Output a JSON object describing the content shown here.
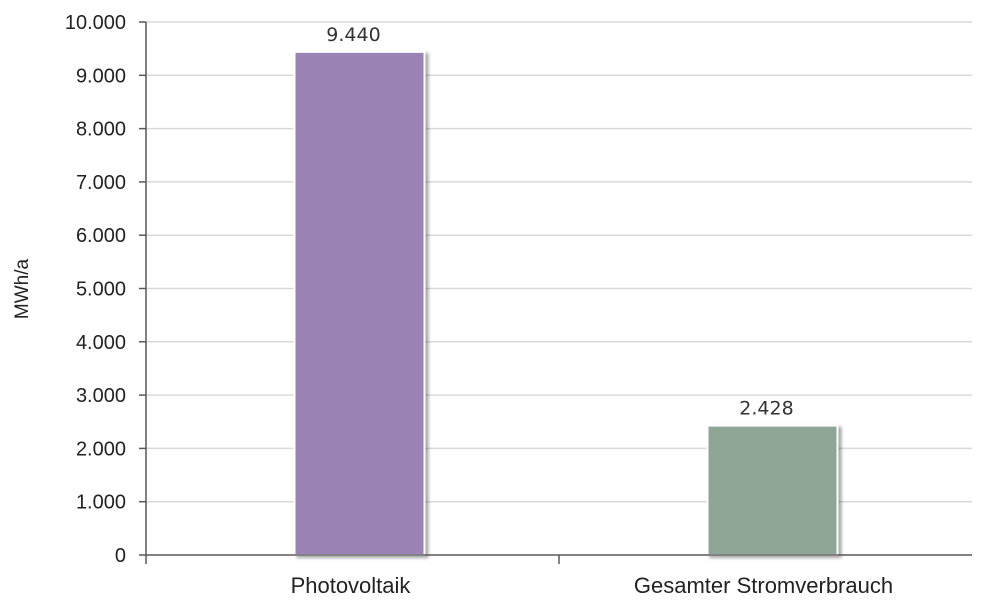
{
  "chart_data": {
    "type": "bar",
    "categories": [
      "Photovoltaik",
      "Gesamter Stromverbrauch"
    ],
    "values": [
      9440,
      2428
    ],
    "data_labels": [
      "9.440",
      "2.428"
    ],
    "ylabel": "MWh/a",
    "ylim": [
      0,
      10000
    ],
    "yticks": [
      0,
      1000,
      2000,
      3000,
      4000,
      5000,
      6000,
      7000,
      8000,
      9000,
      10000
    ],
    "ytick_labels": [
      "0",
      "1.000",
      "2.000",
      "3.000",
      "4.000",
      "5.000",
      "6.000",
      "7.000",
      "8.000",
      "9.000",
      "10.000"
    ],
    "grid": true,
    "bar_colors": [
      "#9a82b4",
      "#8fa595"
    ],
    "grid_color": "#d9d9d9",
    "axis_color": "#595959"
  }
}
